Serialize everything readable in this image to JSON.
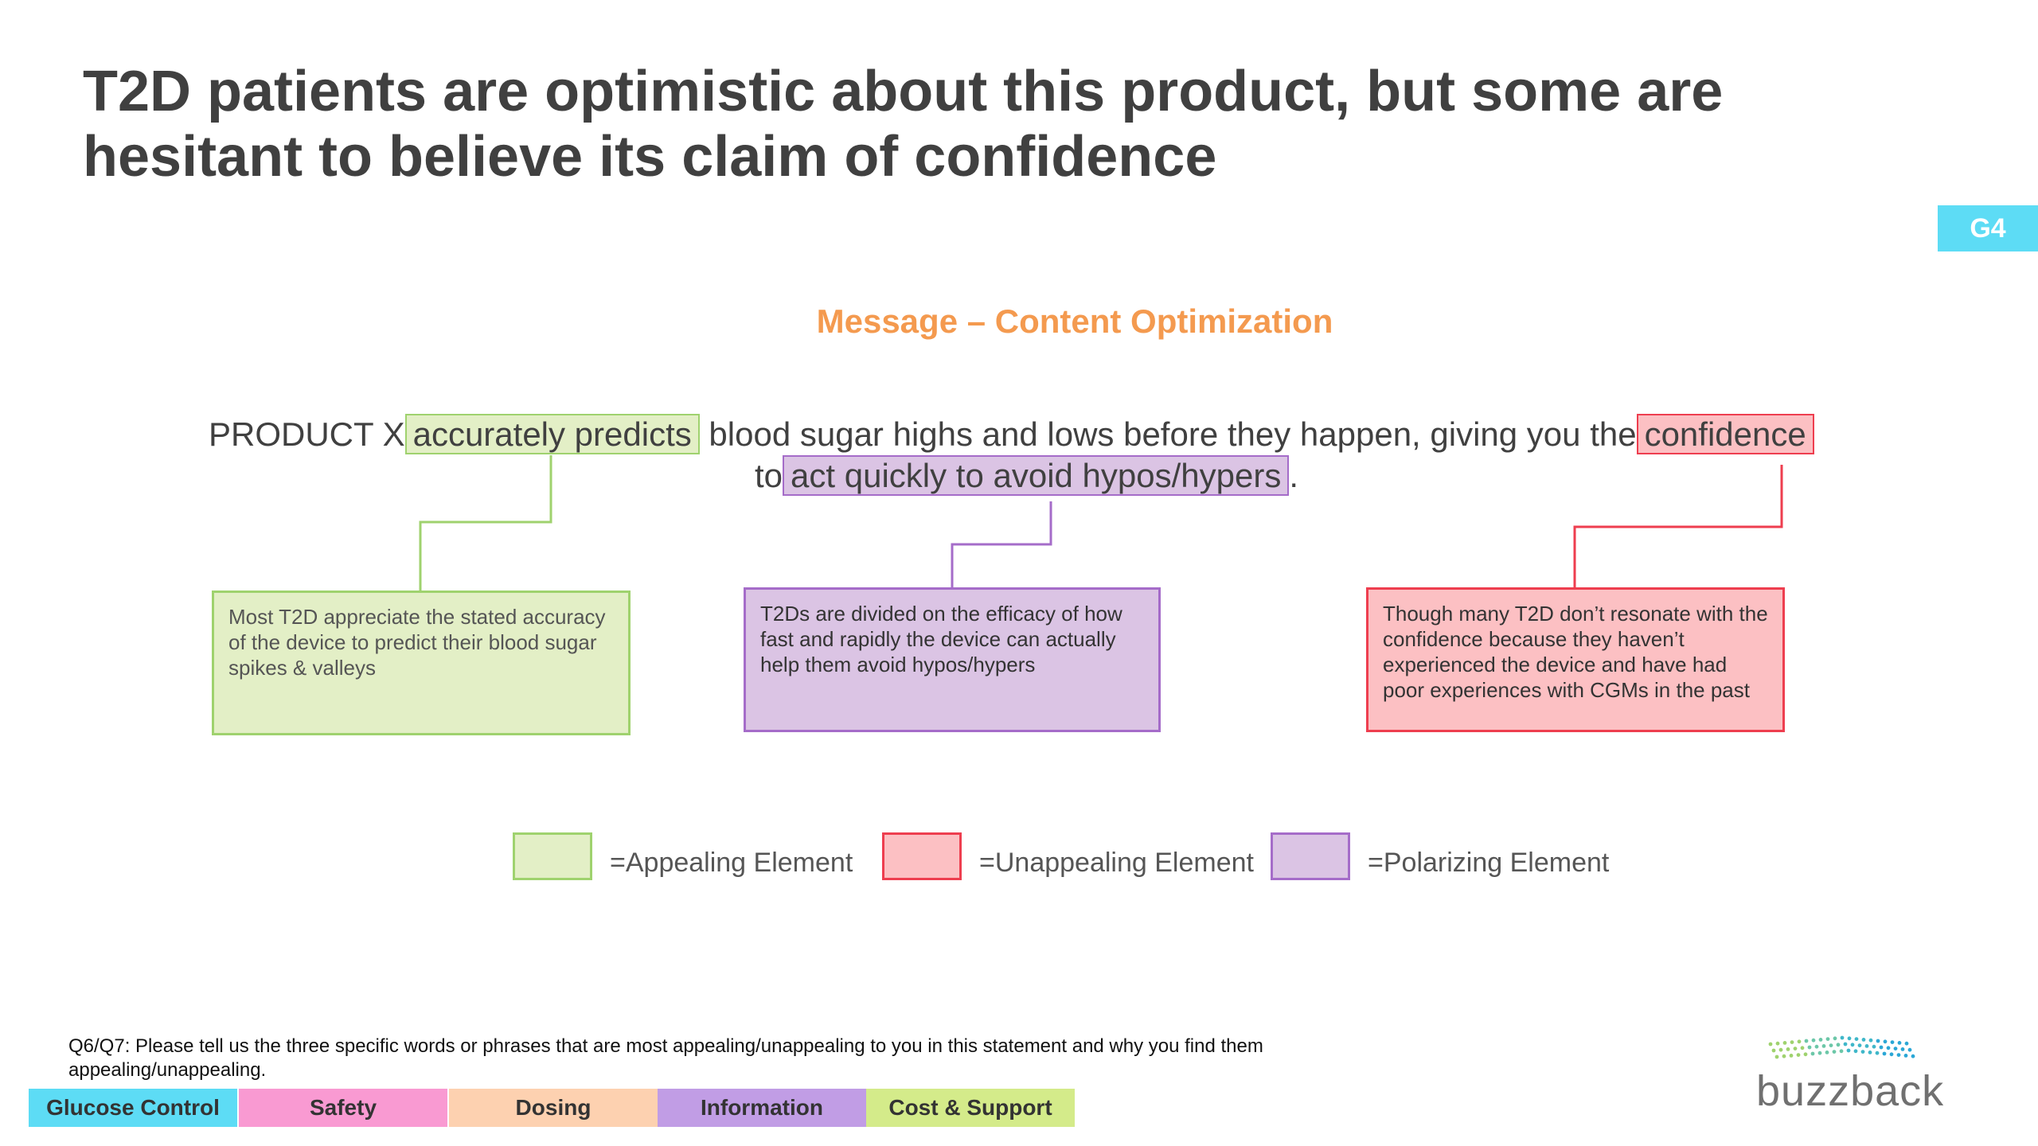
{
  "slide": {
    "title_line1": "T2D patients are optimistic about this product, but some are",
    "title_line2": "hesitant to believe its claim of confidence",
    "tag": "G4",
    "subtitle": "Message – Content Optimization"
  },
  "statement": {
    "part1": "PRODUCT X",
    "highlight_appealing": "accurately predicts",
    "part2": "blood sugar highs and lows before they happen, giving you the",
    "highlight_unappealing": "confidence",
    "part3": "to",
    "highlight_polarizing": "act quickly to avoid hypos/hypers",
    "part4": "."
  },
  "callouts": {
    "appealing": "Most T2D appreciate the stated accuracy of the device to predict their blood sugar spikes & valleys",
    "polarizing": "T2Ds are divided on the efficacy of how fast and rapidly the device can actually help them avoid hypos/hypers",
    "unappealing": "Though many T2D don’t resonate with the confidence because they haven’t experienced the device and have had poor experiences with CGMs in the past"
  },
  "legend": {
    "appealing": "=Appealing Element",
    "unappealing": "=Unappealing Element",
    "polarizing": "=Polarizing Element"
  },
  "question": "Q6/Q7: Please tell us the three specific words or phrases that are most appealing/unappealing to you in this statement and why you find them appealing/unappealing.",
  "categories": [
    {
      "label": "Glucose Control",
      "color": "#5ddcf5"
    },
    {
      "label": "Safety",
      "color": "#f99ad2"
    },
    {
      "label": "Dosing",
      "color": "#fdd1b0"
    },
    {
      "label": "Information",
      "color": "#c19de5"
    },
    {
      "label": "Cost & Support",
      "color": "#d4eb8a"
    }
  ],
  "logo": {
    "text": "buzzback"
  },
  "colors": {
    "appealing": "#e3efc6",
    "unappealing": "#fcc0c3",
    "polarizing": "#dbc4e4",
    "accent_orange": "#f49a4f",
    "tag": "#5ddcf5"
  }
}
